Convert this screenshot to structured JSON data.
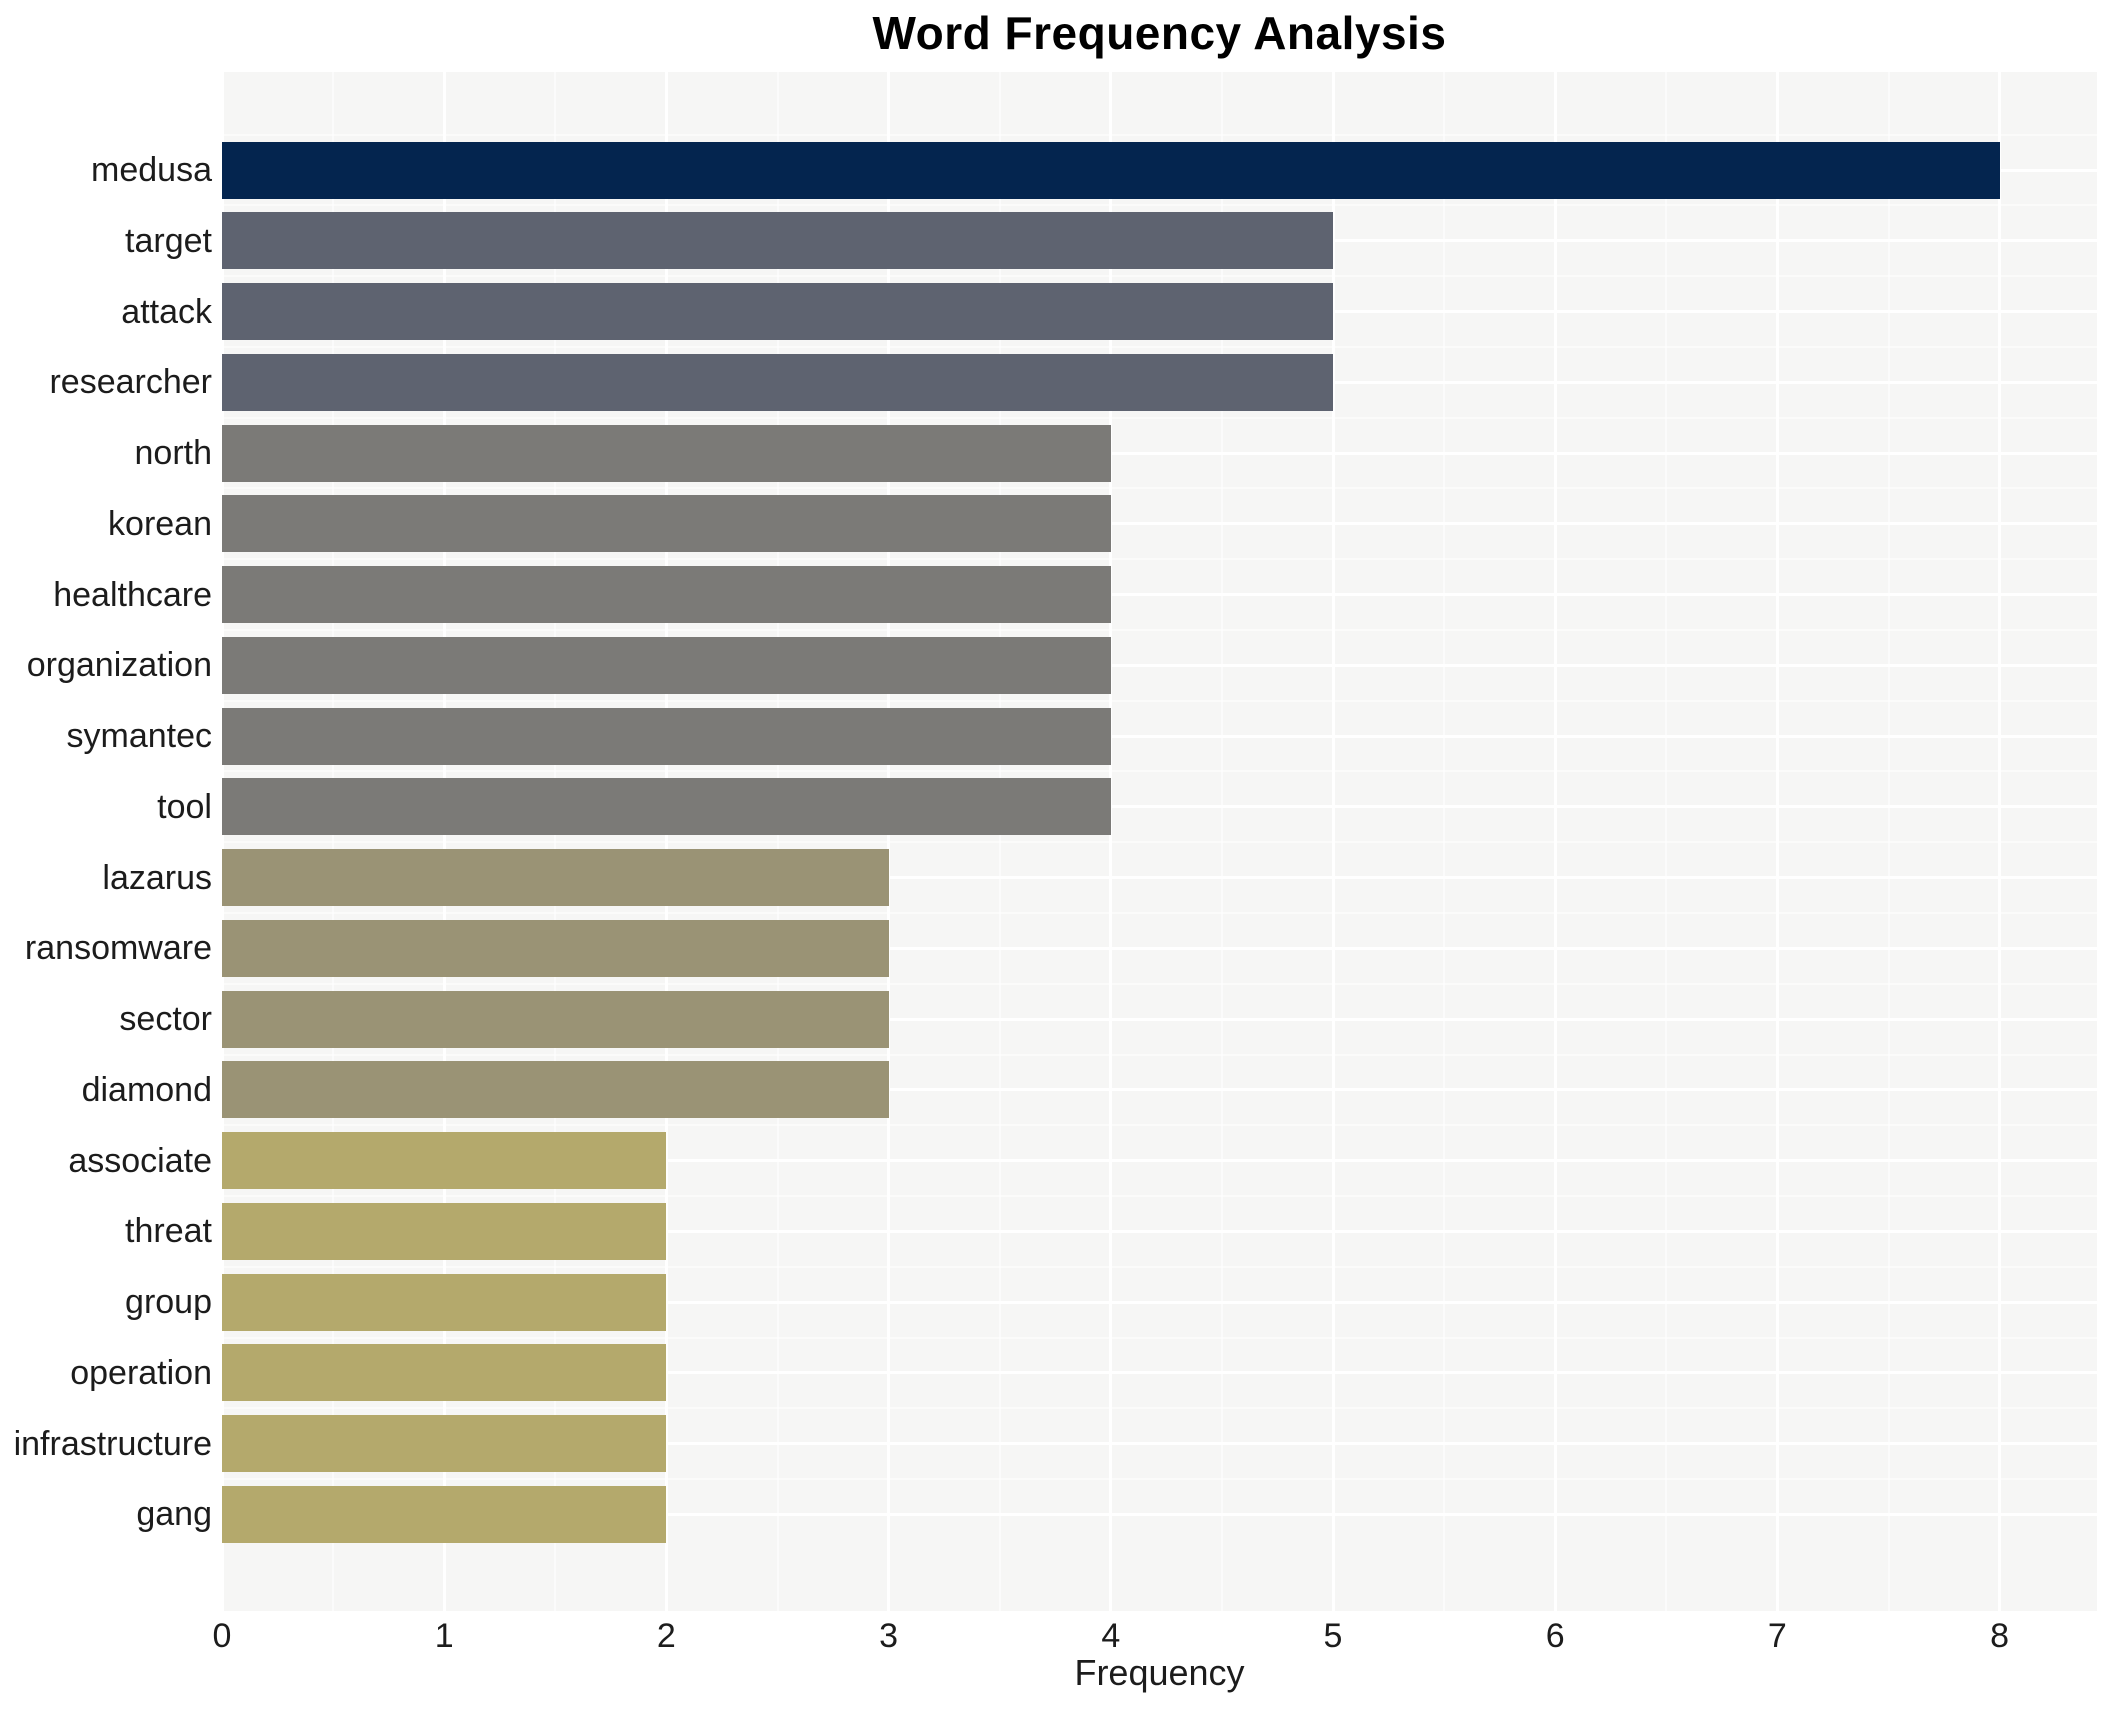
{
  "chart_data": {
    "type": "bar",
    "orientation": "horizontal",
    "title": "Word Frequency Analysis",
    "xlabel": "Frequency",
    "ylabel": "",
    "categories": [
      "medusa",
      "target",
      "attack",
      "researcher",
      "north",
      "korean",
      "healthcare",
      "organization",
      "symantec",
      "tool",
      "lazarus",
      "ransomware",
      "sector",
      "diamond",
      "associate",
      "threat",
      "group",
      "operation",
      "infrastructure",
      "gang"
    ],
    "values": [
      8,
      5,
      5,
      5,
      4,
      4,
      4,
      4,
      4,
      4,
      3,
      3,
      3,
      3,
      2,
      2,
      2,
      2,
      2,
      2
    ],
    "xticks": [
      0,
      1,
      2,
      3,
      4,
      5,
      6,
      7,
      8
    ],
    "xlim": [
      0,
      8.44
    ],
    "grid": "white major gridlines: vertical at integer ticks, horizontal at category centers; faint minors between",
    "legend": "none",
    "colors": {
      "page_bg": "#ffffff",
      "panel_bg": "#f6f6f5",
      "gridline": "#ffffff",
      "title_text": "#000000",
      "axis_text": "#1c1c1c",
      "value_color_map": {
        "8": "#04254f",
        "5": "#5e6370",
        "4": "#7b7a77",
        "3": "#9a9375",
        "2": "#b4a96c"
      }
    }
  }
}
